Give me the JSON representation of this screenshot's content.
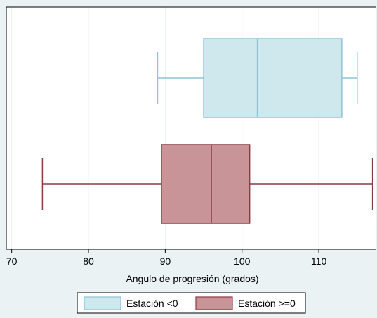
{
  "chart_data": {
    "type": "boxplot",
    "orientation": "horizontal",
    "xlabel": "Angulo de progresión (grados)",
    "xlim": [
      69.3,
      117.4
    ],
    "xticks": [
      70,
      80,
      90,
      100,
      110
    ],
    "grid": true,
    "legend_position": "bottom",
    "series": [
      {
        "name": "Estación <0",
        "color": "#cfe8ee",
        "edge_color": "#8fc3d3",
        "whisker_low": 89,
        "q1": 95,
        "median": 102,
        "q3": 113,
        "whisker_high": 115
      },
      {
        "name": "Estación >=0",
        "color": "#c89498",
        "edge_color": "#8b3a42",
        "whisker_low": 74,
        "q1": 89.5,
        "median": 96,
        "q3": 101,
        "whisker_high": 117
      }
    ]
  },
  "colors": {
    "outer_background": "#eaf2f3",
    "plot_background": "#ffffff",
    "gridline": "#e9f0f1",
    "axis": "#000000"
  }
}
